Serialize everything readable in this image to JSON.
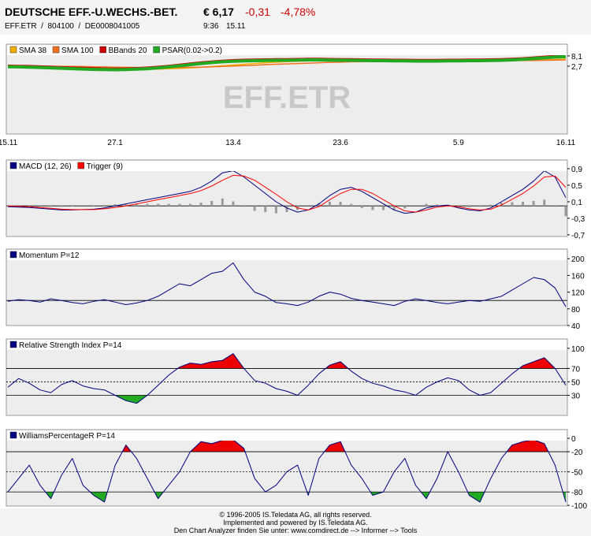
{
  "header": {
    "name": "DEUTSCHE EFF.-U.WECHS.-BET.",
    "price": "€ 6,17",
    "change": "-0,31",
    "change_pct": "-4,78%",
    "ids": "EFF.ETR  /  804100  /  DE0008041005",
    "time": "9:36",
    "date": "15.11"
  },
  "footer": [
    "© 1996-2005 IS.Teledata AG, all rights reserved.",
    "Implemented and powered by IS.Teledata AG.",
    "Den Chart Analyzer finden Sie unter: www.comdirect.de --> Informer --> Tools"
  ],
  "chart_data": [
    {
      "type": "price",
      "watermark": "EFF.ETR",
      "categories": [
        "15.11",
        null,
        null,
        null,
        null,
        null,
        null,
        null,
        null,
        null,
        "27.1",
        null,
        null,
        null,
        null,
        null,
        null,
        null,
        null,
        null,
        null,
        "13.4",
        null,
        null,
        null,
        null,
        null,
        null,
        null,
        null,
        null,
        "23.6",
        null,
        null,
        null,
        null,
        null,
        null,
        null,
        null,
        null,
        null,
        "5.9",
        null,
        null,
        null,
        null,
        null,
        null,
        null,
        null,
        null,
        "16.11"
      ],
      "series": [
        {
          "name": "SMA 38",
          "color": "#f0b000",
          "values": [
            2.6,
            2.6,
            2.5,
            2.5,
            2.4,
            2.3,
            2.2,
            2.0,
            1.9,
            1.7,
            1.5,
            1.4,
            1.3,
            1.2,
            1.2,
            1.3,
            1.5,
            1.8,
            2.1,
            2.5,
            2.9,
            3.3,
            3.7,
            4.1,
            4.5,
            4.8,
            5.1,
            5.3,
            5.5,
            5.6,
            5.7,
            5.8,
            5.8,
            5.8,
            5.8,
            5.7,
            5.7,
            5.6,
            5.6,
            5.5,
            5.5,
            5.5,
            5.5,
            5.5,
            5.5,
            5.5,
            5.6,
            5.6,
            5.7,
            5.8,
            6.0,
            6.2,
            6.4
          ]
        },
        {
          "name": "SMA 100",
          "color": "#f07020",
          "values": [
            2.8,
            2.8,
            2.8,
            2.7,
            2.7,
            2.6,
            2.6,
            2.5,
            2.4,
            2.3,
            2.2,
            2.1,
            2.0,
            2.0,
            1.9,
            1.9,
            2.0,
            2.1,
            2.2,
            2.4,
            2.6,
            2.8,
            3.0,
            3.2,
            3.5,
            3.7,
            3.9,
            4.1,
            4.3,
            4.5,
            4.7,
            4.8,
            5.0,
            5.1,
            5.2,
            5.3,
            5.4,
            5.4,
            5.5,
            5.5,
            5.5,
            5.6,
            5.6,
            5.6,
            5.6,
            5.6,
            5.6,
            5.7,
            5.7,
            5.7,
            5.8,
            5.9,
            6.0
          ]
        },
        {
          "name": "BBands 20",
          "color": "#cc0000",
          "values": [
            2.7,
            2.6,
            2.5,
            2.3,
            2.1,
            1.9,
            1.7,
            1.5,
            1.3,
            1.2,
            1.1,
            1.2,
            1.4,
            1.7,
            2.1,
            2.6,
            3.2,
            3.8,
            4.4,
            4.9,
            5.3,
            5.6,
            5.8,
            5.9,
            6.0,
            6.1,
            6.1,
            6.2,
            6.3,
            6.3,
            6.2,
            6.1,
            6.1,
            6.0,
            5.9,
            5.9,
            5.8,
            5.8,
            5.7,
            5.7,
            5.7,
            5.8,
            5.8,
            5.9,
            5.9,
            6.0,
            6.1,
            6.3,
            6.6,
            7.0,
            7.4,
            7.8,
            8.0
          ]
        },
        {
          "name": "PSAR(0.02->0.2)",
          "color": "#22aa22",
          "values": [
            2.4,
            2.3,
            2.2,
            2.0,
            1.8,
            1.6,
            1.4,
            1.2,
            1.0,
            0.9,
            0.8,
            0.9,
            1.1,
            1.4,
            1.8,
            2.3,
            2.9,
            3.5,
            4.1,
            4.6,
            5.0,
            5.3,
            5.5,
            5.6,
            5.7,
            5.8,
            5.8,
            5.9,
            6.0,
            6.0,
            5.9,
            5.8,
            5.8,
            5.7,
            5.6,
            5.6,
            5.5,
            5.5,
            5.4,
            5.4,
            5.4,
            5.5,
            5.5,
            5.6,
            5.6,
            5.7,
            5.8,
            6.0,
            6.3,
            6.7,
            7.1,
            7.5,
            7.7
          ]
        }
      ],
      "ylim": [
        -33,
        14.3
      ],
      "yticks": [
        {
          "value": 8.1,
          "label": "8,1"
        },
        {
          "value": 2.7,
          "label": "2,7"
        }
      ]
    },
    {
      "type": "macd",
      "series": [
        {
          "name": "MACD (12, 26)",
          "color": "#000080",
          "values": [
            -0.02,
            -0.03,
            -0.04,
            -0.06,
            -0.08,
            -0.1,
            -0.1,
            -0.09,
            -0.08,
            -0.05,
            0.0,
            0.05,
            0.1,
            0.15,
            0.2,
            0.25,
            0.3,
            0.35,
            0.45,
            0.6,
            0.8,
            0.85,
            0.7,
            0.5,
            0.3,
            0.1,
            -0.05,
            -0.15,
            -0.1,
            0.05,
            0.25,
            0.4,
            0.45,
            0.35,
            0.2,
            0.05,
            -0.1,
            -0.18,
            -0.15,
            -0.05,
            0.0,
            0.02,
            -0.05,
            -0.1,
            -0.12,
            -0.05,
            0.1,
            0.25,
            0.4,
            0.6,
            0.85,
            0.7,
            0.2
          ]
        },
        {
          "name": "Trigger (9)",
          "color": "#ff0000",
          "values": [
            0.0,
            -0.01,
            -0.02,
            -0.04,
            -0.06,
            -0.08,
            -0.09,
            -0.09,
            -0.09,
            -0.07,
            -0.04,
            0.0,
            0.05,
            0.1,
            0.15,
            0.2,
            0.25,
            0.3,
            0.37,
            0.48,
            0.62,
            0.74,
            0.72,
            0.62,
            0.45,
            0.28,
            0.1,
            -0.05,
            -0.1,
            -0.02,
            0.15,
            0.3,
            0.4,
            0.4,
            0.3,
            0.15,
            0.0,
            -0.12,
            -0.15,
            -0.1,
            -0.03,
            0.0,
            -0.02,
            -0.07,
            -0.1,
            -0.08,
            0.02,
            0.16,
            0.3,
            0.48,
            0.7,
            0.72,
            0.45
          ]
        }
      ],
      "histogram": {
        "color": "#999999",
        "values": [
          -0.02,
          -0.02,
          -0.02,
          -0.02,
          -0.02,
          -0.02,
          -0.01,
          0.0,
          0.01,
          0.02,
          0.04,
          0.05,
          0.05,
          0.05,
          0.05,
          0.05,
          0.05,
          0.05,
          0.08,
          0.12,
          0.18,
          0.11,
          -0.02,
          -0.12,
          -0.15,
          -0.18,
          -0.15,
          -0.1,
          0.0,
          0.07,
          0.1,
          0.1,
          0.05,
          -0.05,
          -0.1,
          -0.1,
          -0.1,
          -0.06,
          0.0,
          0.05,
          0.03,
          0.02,
          -0.03,
          -0.03,
          -0.02,
          0.03,
          0.08,
          0.09,
          0.1,
          0.12,
          0.15,
          -0.02,
          -0.25
        ]
      },
      "reference_lines": [
        0
      ],
      "ylim": [
        -0.74,
        1.11
      ],
      "yticks": [
        {
          "value": 0.9,
          "label": "0,9"
        },
        {
          "value": 0.5,
          "label": "0,5"
        },
        {
          "value": 0.1,
          "label": "0,1"
        },
        {
          "value": -0.3,
          "label": "-0,3"
        },
        {
          "value": -0.7,
          "label": "-0,7"
        }
      ]
    },
    {
      "type": "oscillator",
      "series": [
        {
          "name": "Momentum P=12",
          "color": "#000080",
          "values": [
            98,
            102,
            100,
            96,
            104,
            100,
            95,
            92,
            98,
            102,
            96,
            90,
            94,
            100,
            110,
            125,
            140,
            135,
            150,
            165,
            170,
            190,
            150,
            120,
            110,
            95,
            92,
            88,
            96,
            110,
            120,
            115,
            105,
            100,
            96,
            92,
            88,
            98,
            104,
            100,
            95,
            92,
            96,
            100,
            98,
            104,
            110,
            125,
            140,
            155,
            150,
            130,
            85
          ]
        }
      ],
      "reference_lines": [
        100
      ],
      "ylim": [
        40,
        223
      ],
      "yticks": [
        200,
        160,
        120,
        80,
        40
      ]
    },
    {
      "type": "oscillator",
      "series": [
        {
          "name": "Relative Strength Index P=14",
          "color": "#000080",
          "values": [
            42,
            55,
            48,
            38,
            34,
            46,
            52,
            44,
            40,
            38,
            30,
            22,
            18,
            30,
            45,
            60,
            72,
            78,
            76,
            80,
            82,
            92,
            70,
            52,
            48,
            40,
            36,
            30,
            45,
            62,
            75,
            80,
            66,
            55,
            48,
            44,
            38,
            35,
            30,
            42,
            50,
            56,
            52,
            38,
            30,
            34,
            48,
            62,
            74,
            80,
            86,
            70,
            45
          ]
        }
      ],
      "upper": 70,
      "middle": 50,
      "lower": 30,
      "upper_color": "#ee0000",
      "lower_color": "#22aa22",
      "ylim": [
        0,
        114
      ],
      "yticks": [
        100,
        70,
        50,
        30
      ]
    },
    {
      "type": "oscillator",
      "series": [
        {
          "name": "WilliamsPercentageR P=14",
          "color": "#000080",
          "values": [
            -80,
            -60,
            -40,
            -70,
            -90,
            -55,
            -30,
            -70,
            -85,
            -95,
            -40,
            -10,
            -30,
            -60,
            -90,
            -70,
            -50,
            -20,
            -5,
            -8,
            -3,
            -2,
            -15,
            -60,
            -80,
            -70,
            -50,
            -40,
            -85,
            -30,
            -10,
            -5,
            -40,
            -60,
            -85,
            -80,
            -50,
            -30,
            -70,
            -90,
            -60,
            -20,
            -50,
            -85,
            -95,
            -60,
            -30,
            -10,
            -5,
            -2,
            -8,
            -40,
            -95
          ]
        }
      ],
      "upper": -20,
      "middle": -50,
      "lower": -80,
      "upper_color": "#ee0000",
      "lower_color": "#22aa22",
      "ylim": [
        -101,
        13
      ],
      "yticks": [
        0,
        -20,
        -50,
        -80,
        -100
      ]
    }
  ]
}
